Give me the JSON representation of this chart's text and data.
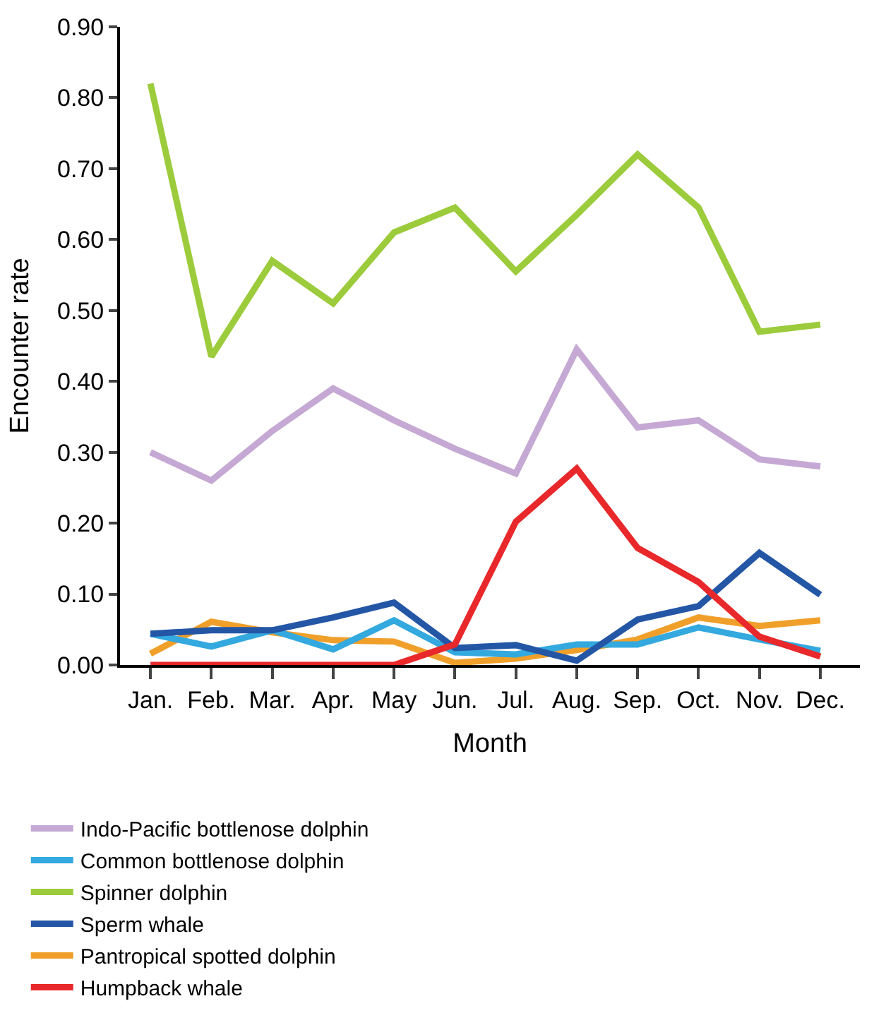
{
  "chart_data": {
    "type": "line",
    "xlabel": "Month",
    "ylabel": "Encounter rate",
    "categories": [
      "Jan.",
      "Feb.",
      "Mar.",
      "Apr.",
      "May",
      "Jun.",
      "Jul.",
      "Aug.",
      "Sep.",
      "Oct.",
      "Nov.",
      "Dec."
    ],
    "ylim": [
      0,
      0.9
    ],
    "yticks": [
      {
        "value": 0,
        "label": "0.00"
      },
      {
        "value": 0.1,
        "label": "0.10"
      },
      {
        "value": 0.2,
        "label": "0.20"
      },
      {
        "value": 0.3,
        "label": "0.30"
      },
      {
        "value": 0.4,
        "label": "0.40"
      },
      {
        "value": 0.5,
        "label": "0.50"
      },
      {
        "value": 0.6,
        "label": "0.60"
      },
      {
        "value": 0.7,
        "label": "0.70"
      },
      {
        "value": 0.8,
        "label": "0.80"
      },
      {
        "value": 0.9,
        "label": "0.90"
      }
    ],
    "legend": "bottom",
    "line_style": "solid",
    "series": [
      {
        "name": "Indo-Pacific bottlenose dolphin",
        "color": "#c5a8d3",
        "values": [
          0.3,
          0.26,
          0.33,
          0.39,
          0.345,
          0.305,
          0.27,
          0.445,
          0.335,
          0.345,
          0.29,
          0.28
        ]
      },
      {
        "name": "Spinner dolphin",
        "color": "#9ccb3b",
        "values": [
          0.82,
          0.435,
          0.57,
          0.51,
          0.61,
          0.645,
          0.555,
          0.635,
          0.72,
          0.645,
          0.47,
          0.48
        ]
      },
      {
        "name": "Pantropical spotted dolphin",
        "color": "#f0a02a",
        "values": [
          0.016,
          0.061,
          0.046,
          0.035,
          0.033,
          0.003,
          0.009,
          0.021,
          0.036,
          0.067,
          0.055,
          0.063
        ]
      },
      {
        "name": "Common bottlenose dolphin",
        "color": "#33a9df",
        "values": [
          0.044,
          0.026,
          0.049,
          0.022,
          0.063,
          0.018,
          0.015,
          0.029,
          0.029,
          0.053,
          0.036,
          0.02
        ]
      },
      {
        "name": "Sperm whale",
        "color": "#2456a6",
        "values": [
          0.044,
          0.049,
          0.049,
          0.067,
          0.088,
          0.024,
          0.028,
          0.006,
          0.064,
          0.083,
          0.158,
          0.099
        ]
      },
      {
        "name": "Humpback whale",
        "color": "#e8282a",
        "values": [
          0,
          0,
          0,
          0,
          0,
          0.029,
          0.202,
          0.277,
          0.165,
          0.117,
          0.04,
          0.012
        ]
      }
    ]
  }
}
